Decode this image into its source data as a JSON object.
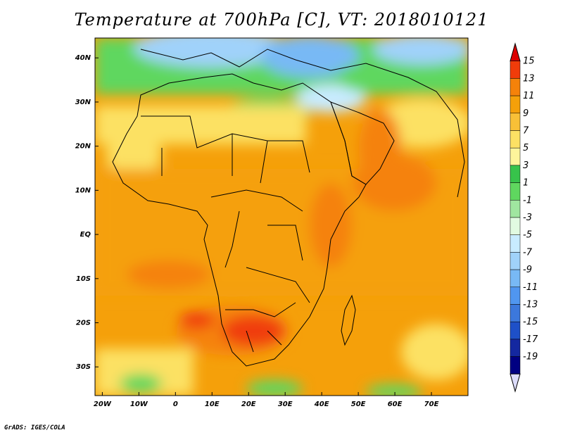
{
  "title": "Temperature at 700hPa [C], VT: 2018010121",
  "credit": "GrADS: IGES/COLA",
  "axes": {
    "lon_labels": [
      "20W",
      "10W",
      "0",
      "10E",
      "20E",
      "30E",
      "40E",
      "50E",
      "60E",
      "70E"
    ],
    "lon_values": [
      -20,
      -10,
      0,
      10,
      20,
      30,
      40,
      50,
      60,
      70
    ],
    "lat_labels": [
      "40N",
      "30N",
      "20N",
      "10N",
      "EQ",
      "10S",
      "20S",
      "30S"
    ],
    "lat_values": [
      40,
      30,
      20,
      10,
      0,
      -10,
      -20,
      -30
    ],
    "lon_range": [
      -22,
      80
    ],
    "lat_range": [
      -36.5,
      44.5
    ]
  },
  "colorbar": {
    "labels": [
      "15",
      "13",
      "11",
      "9",
      "7",
      "5",
      "3",
      "1",
      "-1",
      "-3",
      "-5",
      "-7",
      "-9",
      "-11",
      "-13",
      "-15",
      "-17",
      "-19"
    ],
    "colors": [
      "#dc0000",
      "#f03c0a",
      "#f5820a",
      "#f5a00a",
      "#f8c037",
      "#fce164",
      "#fdf59b",
      "#37c34b",
      "#5fd75f",
      "#a0e6a0",
      "#e1fae1",
      "#c8ebff",
      "#a0d2fa",
      "#78b9f5",
      "#5096f0",
      "#3c78dc",
      "#1e50c8",
      "#1428a0",
      "#000082",
      "#dcdcfa"
    ]
  },
  "legend": {
    "units": "C"
  }
}
